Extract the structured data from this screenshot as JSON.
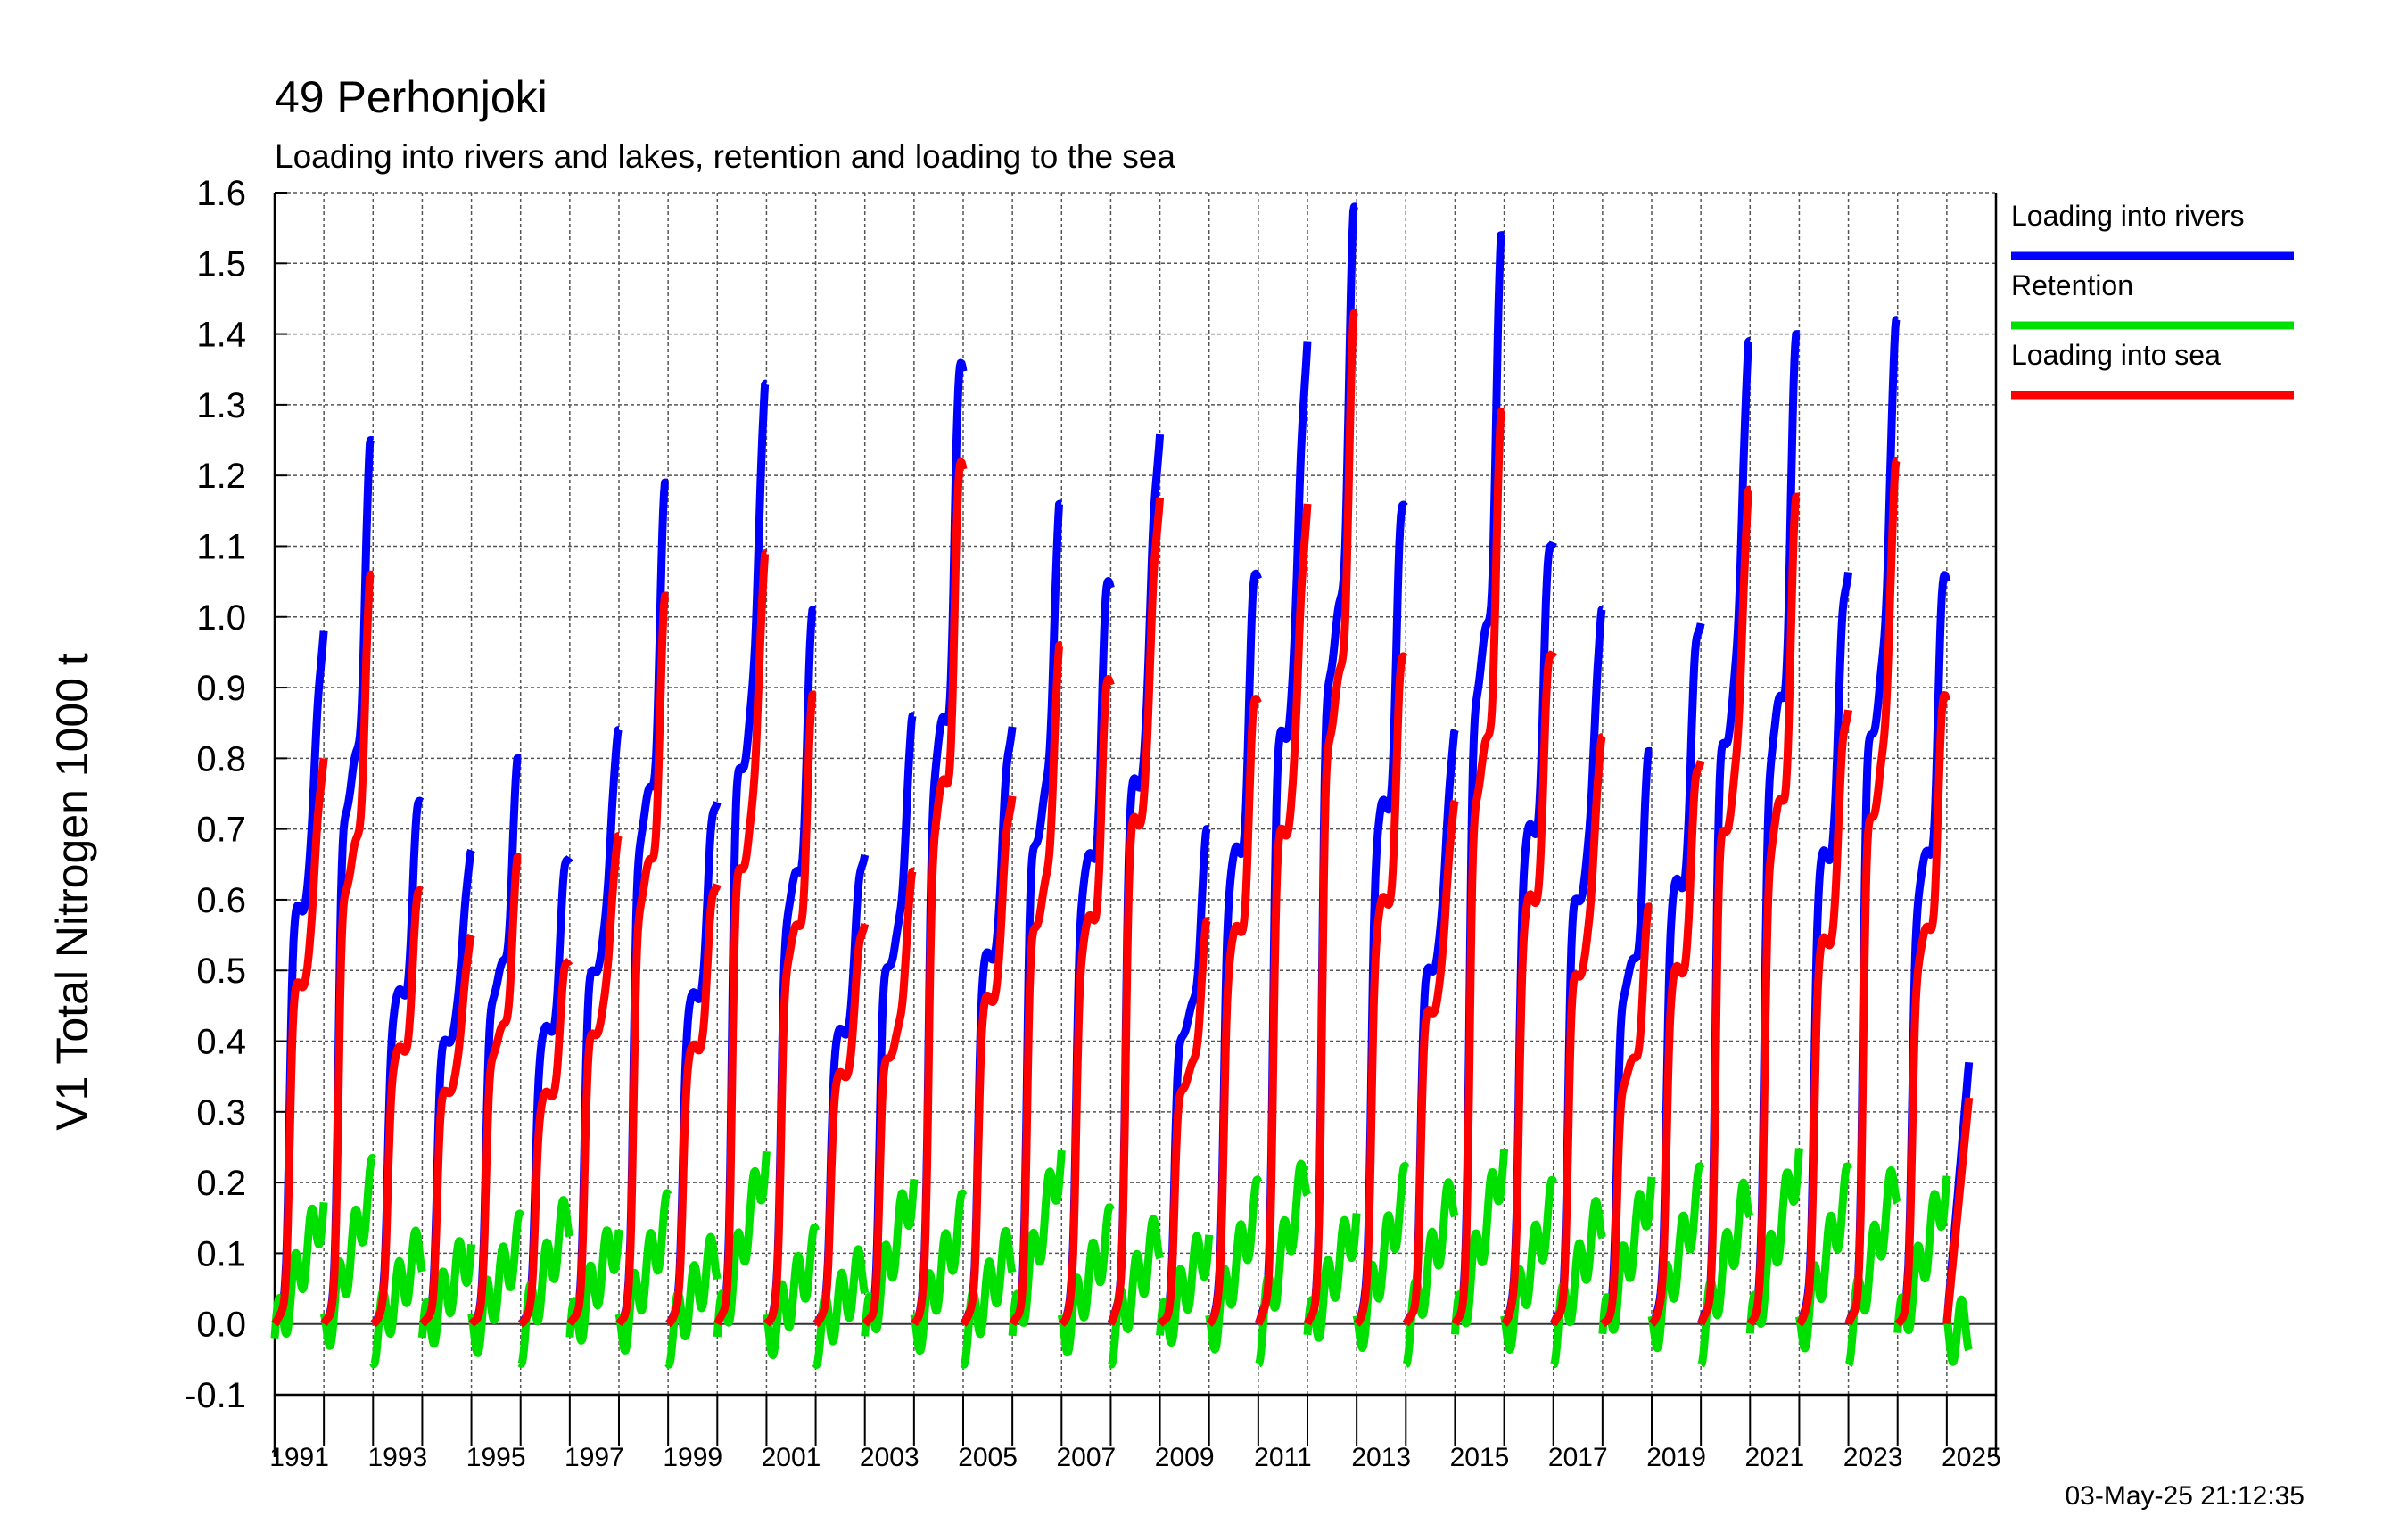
{
  "chart_data": {
    "type": "line",
    "title": "49 Perhonjoki",
    "subtitle": "Loading into rivers and lakes, retention and loading to the sea",
    "ylabel": "V1 Total Nitrogen 1000 t",
    "timestamp": "03-May-25 21:12:35",
    "ylim": [
      -0.1,
      1.6
    ],
    "yticks": [
      "1.6",
      "1.5",
      "1.4",
      "1.3",
      "1.2",
      "1.1",
      "1.0",
      "0.9",
      "0.8",
      "0.7",
      "0.6",
      "0.5",
      "0.4",
      "0.3",
      "0.2",
      "0.1",
      "0.0",
      "-0.1"
    ],
    "xlim": [
      1990,
      2025
    ],
    "xticks": [
      "1991",
      "1993",
      "1995",
      "1997",
      "1999",
      "2001",
      "2003",
      "2005",
      "2007",
      "2009",
      "2011",
      "2013",
      "2015",
      "2017",
      "2019",
      "2021",
      "2023",
      "2025"
    ],
    "grid": true,
    "legend_placement": "right",
    "series": [
      {
        "name": "Loading into rivers",
        "color": "#0000ff",
        "annual_end_values": [
          0.98,
          1.25,
          0.76,
          0.67,
          0.8,
          0.68,
          0.84,
          1.19,
          0.76,
          1.33,
          1.01,
          0.68,
          0.86,
          1.36,
          0.86,
          1.16,
          1.06,
          1.27,
          0.7,
          1.08,
          1.39,
          1.58,
          1.19,
          0.84,
          1.54,
          1.14,
          1.01,
          0.81,
          1.02,
          1.39,
          1.4,
          1.09,
          1.42,
          1.06,
          0.37
        ]
      },
      {
        "name": "Retention",
        "color": "#00e000",
        "annual_end_values": [
          0.19,
          0.22,
          0.13,
          0.13,
          0.14,
          0.18,
          0.15,
          0.17,
          0.12,
          0.26,
          0.12,
          0.1,
          0.22,
          0.17,
          0.13,
          0.26,
          0.15,
          0.15,
          0.14,
          0.19,
          0.24,
          0.17,
          0.21,
          0.21,
          0.26,
          0.19,
          0.18,
          0.22,
          0.21,
          0.21,
          0.26,
          0.21,
          0.23,
          0.22,
          0.05
        ]
      },
      {
        "name": "Loading into sea",
        "color": "#ff0000",
        "annual_end_values": [
          0.8,
          1.06,
          0.63,
          0.55,
          0.66,
          0.53,
          0.69,
          1.03,
          0.64,
          1.09,
          0.89,
          0.58,
          0.64,
          1.22,
          0.76,
          0.96,
          0.92,
          1.18,
          0.57,
          0.9,
          1.16,
          1.43,
          0.97,
          0.74,
          1.29,
          0.98,
          0.83,
          0.59,
          0.82,
          1.18,
          1.17,
          0.89,
          1.22,
          0.89,
          0.32
        ]
      }
    ]
  }
}
